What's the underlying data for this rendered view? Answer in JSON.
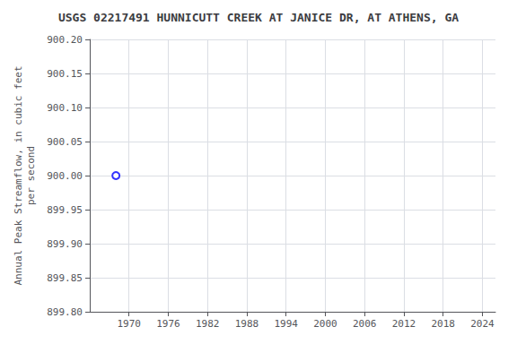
{
  "chart_data": {
    "type": "scatter",
    "title": "USGS 02217491 HUNNICUTT CREEK AT JANICE DR, AT ATHENS, GA",
    "ylabel": "Annual Peak Streamflow, in cubic feet\nper second",
    "x": [
      1968
    ],
    "values": [
      900.0
    ],
    "color": "#0000ff",
    "marker": "hollow_circle",
    "xlim": [
      1964,
      2026
    ],
    "ylim": [
      899.8,
      900.2
    ],
    "xticks": [
      1970,
      1976,
      1982,
      1988,
      1994,
      2000,
      2006,
      2012,
      2018,
      2024
    ],
    "yticks": [
      {
        "value": 899.8,
        "label": "899.80"
      },
      899.85,
      {
        "value": 899.9,
        "label": "899.90"
      },
      899.95,
      {
        "value": 900,
        "label": "900.00"
      },
      900.05,
      {
        "value": 900.1,
        "label": "900.10"
      },
      900.15,
      {
        "value": 900.2,
        "label": "900.20"
      }
    ],
    "grid": true
  }
}
